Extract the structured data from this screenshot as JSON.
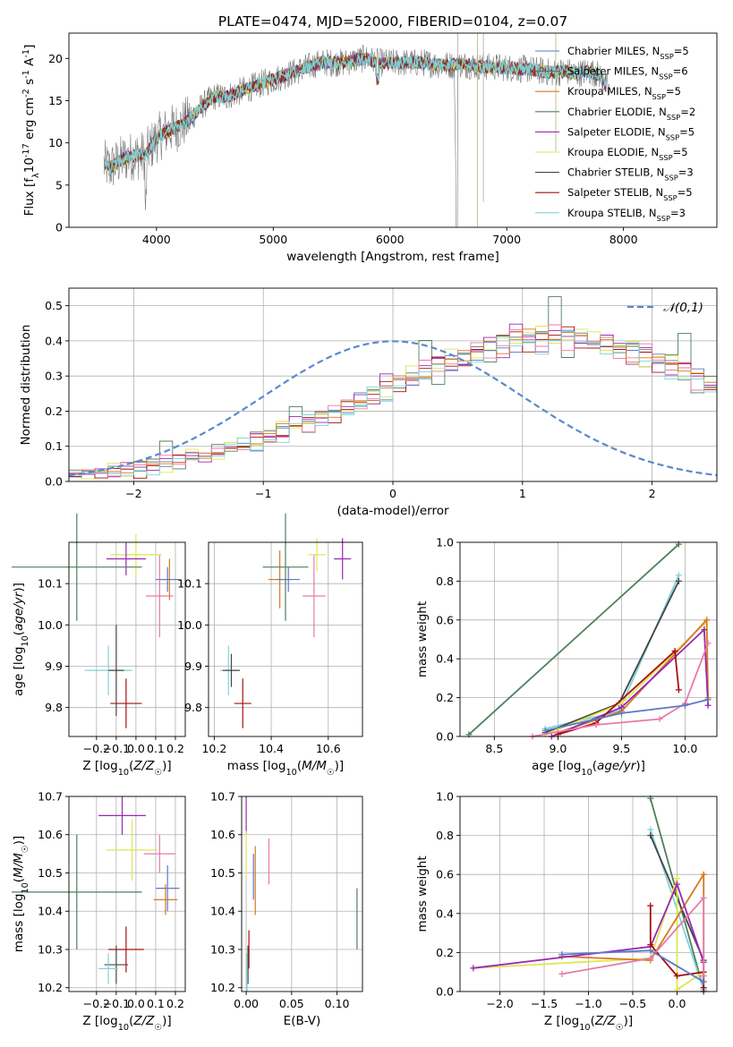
{
  "chart_data": [
    {
      "id": "spectrum",
      "type": "line",
      "title": "PLATE=0474, MJD=52000, FIBERID=0104, z=0.07",
      "xlabel": "wavelength [Angstrom, rest frame]",
      "ylabel": "Flux [f$_\\lambda$10$^{-17}$ erg cm$^{-2}$ s$^{-1}$ A$^{-1}$]",
      "xlim": [
        3250,
        8800
      ],
      "ylim": [
        0,
        23
      ],
      "xticks": [
        4000,
        5000,
        6000,
        7000,
        8000
      ],
      "yticks": [
        0,
        5,
        10,
        15,
        20
      ],
      "grid": false,
      "legend_position": "top-right",
      "envelope": {
        "x": [
          3550,
          3600,
          3700,
          3800,
          3900,
          4000,
          4100,
          4200,
          4300,
          4400,
          4500,
          4600,
          4700,
          4800,
          4900,
          5000,
          5100,
          5200,
          5300,
          5400,
          5500,
          5600,
          5700,
          5800,
          5900,
          6000,
          6100,
          6200,
          6300,
          6400,
          6500,
          6600,
          6700,
          6800,
          6900,
          7000,
          7100,
          7200,
          7300,
          7400,
          7500,
          7600,
          7700,
          7800,
          7880
        ],
        "y": [
          7.5,
          7.0,
          8.0,
          8.5,
          8.5,
          10.5,
          11.5,
          12.0,
          13.0,
          14.5,
          15.5,
          15.5,
          16.0,
          16.5,
          17.0,
          17.5,
          18.0,
          18.5,
          19.0,
          19.5,
          19.5,
          19.5,
          19.8,
          20.0,
          19.5,
          19.5,
          19.5,
          19.5,
          19.5,
          19.3,
          19.2,
          19.3,
          19.2,
          19.0,
          19.0,
          18.9,
          18.8,
          18.7,
          18.5,
          18.3,
          18.5,
          18.2,
          18.5,
          18.0,
          16.0
        ]
      },
      "series": [
        {
          "name": "Chabrier MILES, N$_{SSP}$=5",
          "color": "#5a78c8"
        },
        {
          "name": "Salpeter MILES, N$_{SSP}$=6",
          "color": "#6a6a6a"
        },
        {
          "name": "Kroupa MILES, N$_{SSP}$=5",
          "color": "#d47a1f"
        },
        {
          "name": "Chabrier ELODIE, N$_{SSP}$=2",
          "color": "#4f7f5c"
        },
        {
          "name": "Salpeter ELODIE, N$_{SSP}$=5",
          "color": "#9b27b5"
        },
        {
          "name": "Kroupa ELODIE, N$_{SSP}$=5",
          "color": "#dfe650"
        },
        {
          "name": "Chabrier STELIB, N$_{SSP}$=3",
          "color": "#444444"
        },
        {
          "name": "Salpeter STELIB, N$_{SSP}$=5",
          "color": "#a80f0f"
        },
        {
          "name": "Kroupa STELIB, N$_{SSP}$=3",
          "color": "#7fd3d8"
        }
      ]
    },
    {
      "id": "residuals",
      "type": "histogram",
      "xlabel": "(data-model)/error",
      "ylabel": "Normed distribution",
      "xlim": [
        -2.5,
        2.5
      ],
      "ylim": [
        0,
        0.55
      ],
      "xticks": [
        -2,
        -1,
        0,
        1,
        2
      ],
      "yticks": [
        0.0,
        0.1,
        0.2,
        0.3,
        0.4,
        0.5
      ],
      "grid": true,
      "legend": "$\\mathcal{N}(0,1)$",
      "legend_position": "top-right",
      "bin_width": 0.1,
      "bin_start": -2.5,
      "base_density": [
        0.018,
        0.02,
        0.024,
        0.028,
        0.032,
        0.037,
        0.043,
        0.049,
        0.056,
        0.064,
        0.072,
        0.081,
        0.091,
        0.101,
        0.113,
        0.125,
        0.138,
        0.151,
        0.165,
        0.18,
        0.195,
        0.21,
        0.225,
        0.241,
        0.257,
        0.273,
        0.289,
        0.305,
        0.32,
        0.335,
        0.349,
        0.362,
        0.373,
        0.383,
        0.391,
        0.397,
        0.4,
        0.402,
        0.4,
        0.397,
        0.391,
        0.383,
        0.373,
        0.362,
        0.349,
        0.335,
        0.32,
        0.305,
        0.289,
        0.273,
        0.257
      ],
      "hist_series": [
        {
          "color": "#5a78c8",
          "offsets": [
            0.0,
            -0.01,
            0.02,
            0.01,
            -0.02,
            0.03,
            0.02,
            -0.01,
            0.03,
            0.01
          ]
        },
        {
          "color": "#4f7f5c",
          "offsets": [
            0.01,
            0.03,
            -0.02,
            0.02,
            0.03,
            -0.01,
            0.04,
            0.12,
            -0.06,
            0.02
          ]
        },
        {
          "color": "#9b27b5",
          "offsets": [
            -0.01,
            0.02,
            0.03,
            -0.02,
            0.05,
            0.01,
            -0.02,
            0.04,
            0.02,
            -0.01
          ]
        },
        {
          "color": "#dfe650",
          "offsets": [
            0.02,
            -0.02,
            0.01,
            0.03,
            -0.01,
            0.02,
            0.03,
            -0.02,
            0.01,
            0.03
          ]
        },
        {
          "color": "#a80f0f",
          "offsets": [
            -0.02,
            0.01,
            -0.01,
            0.02,
            0.02,
            -0.03,
            0.01,
            0.02,
            0.03,
            -0.02
          ]
        },
        {
          "color": "#e87aa8",
          "offsets": [
            0.01,
            0.02,
            -0.02,
            -0.01,
            0.03,
            0.02,
            -0.01,
            0.03,
            -0.02,
            0.01
          ]
        },
        {
          "color": "#d47a1f",
          "offsets": [
            0.0,
            0.01,
            0.02,
            -0.02,
            0.01,
            0.03,
            0.02,
            0.0,
            0.02,
            0.01
          ]
        },
        {
          "color": "#7fd3d8",
          "offsets": [
            -0.01,
            -0.02,
            0.01,
            0.02,
            -0.02,
            0.01,
            -0.03,
            0.01,
            0.02,
            -0.01
          ]
        }
      ]
    },
    {
      "id": "age_vs_Z",
      "type": "scatter",
      "xlabel": "Z [log$_{10}$($Z/Z_\\odot$)]",
      "ylabel": "age  [log$_{10}$($age/yr$)]",
      "xlim": [
        -0.34,
        0.25
      ],
      "ylim": [
        9.73,
        10.2
      ],
      "xticks": [
        -0.2,
        -0.1,
        0.0,
        0.1,
        0.2
      ],
      "yticks": [
        9.8,
        9.9,
        10.0,
        10.1
      ],
      "grid": true,
      "points": [
        {
          "x": 0.12,
          "y": 10.07,
          "xerr": 0.07,
          "yerr": 0.1,
          "color": "#e87aa8"
        },
        {
          "x": 0.17,
          "y": 10.11,
          "xerr": 0.05,
          "yerr": 0.05,
          "color": "#d47a1f"
        },
        {
          "x": 0.16,
          "y": 10.11,
          "xerr": 0.06,
          "yerr": 0.03,
          "color": "#5a78c8"
        },
        {
          "x": 0.0,
          "y": 10.17,
          "xerr": 0.13,
          "yerr": 0.05,
          "color": "#dfe650"
        },
        {
          "x": -0.05,
          "y": 10.16,
          "xerr": 0.1,
          "yerr": 0.04,
          "color": "#9b27b5"
        },
        {
          "x": -0.3,
          "y": 10.14,
          "xerr": 0.33,
          "yerr": 0.13,
          "color": "#4f7f5c"
        },
        {
          "x": -0.14,
          "y": 9.89,
          "xerr": 0.12,
          "yerr": 0.06,
          "color": "#7fd3d8"
        },
        {
          "x": -0.1,
          "y": 9.89,
          "xerr": 0.04,
          "yerr": 0.11,
          "color": "#444444"
        },
        {
          "x": -0.05,
          "y": 9.81,
          "xerr": 0.08,
          "yerr": 0.06,
          "color": "#a80f0f"
        }
      ]
    },
    {
      "id": "age_vs_mass",
      "type": "scatter",
      "xlabel": "mass [log$_{10}$($M/M_\\odot$)]",
      "ylabel": "",
      "xlim": [
        10.18,
        10.72
      ],
      "ylim": [
        9.73,
        10.2
      ],
      "xticks": [
        10.2,
        10.4,
        10.6
      ],
      "yticks": [
        9.8,
        9.9,
        10.0,
        10.1
      ],
      "grid": true,
      "points": [
        {
          "x": 10.55,
          "y": 10.07,
          "xerr": 0.04,
          "yerr": 0.1,
          "color": "#e87aa8"
        },
        {
          "x": 10.43,
          "y": 10.11,
          "xerr": 0.04,
          "yerr": 0.07,
          "color": "#d47a1f"
        },
        {
          "x": 10.46,
          "y": 10.11,
          "xerr": 0.04,
          "yerr": 0.03,
          "color": "#5a78c8"
        },
        {
          "x": 10.56,
          "y": 10.17,
          "xerr": 0.03,
          "yerr": 0.04,
          "color": "#dfe650"
        },
        {
          "x": 10.65,
          "y": 10.16,
          "xerr": 0.03,
          "yerr": 0.05,
          "color": "#9b27b5"
        },
        {
          "x": 10.45,
          "y": 10.14,
          "xerr": 0.08,
          "yerr": 0.13,
          "color": "#4f7f5c"
        },
        {
          "x": 10.25,
          "y": 9.89,
          "xerr": 0.03,
          "yerr": 0.06,
          "color": "#7fd3d8"
        },
        {
          "x": 10.26,
          "y": 9.89,
          "xerr": 0.03,
          "yerr": 0.04,
          "color": "#444444"
        },
        {
          "x": 10.3,
          "y": 9.81,
          "xerr": 0.03,
          "yerr": 0.06,
          "color": "#a80f0f"
        }
      ]
    },
    {
      "id": "weight_vs_age",
      "type": "line",
      "xlabel": "age  [log$_{10}$($age/yr$)]",
      "ylabel": "mass weight",
      "xlim": [
        8.23,
        10.25
      ],
      "ylim": [
        0,
        1.0
      ],
      "xticks": [
        8.5,
        9.0,
        9.5,
        10.0
      ],
      "yticks": [
        0.0,
        0.2,
        0.4,
        0.6,
        0.8,
        1.0
      ],
      "grid": true,
      "series": [
        {
          "color": "#4f7f5c",
          "x": [
            8.3,
            9.95
          ],
          "y": [
            0.01,
            0.99
          ]
        },
        {
          "color": "#7fd3d8",
          "x": [
            8.9,
            9.48,
            9.95
          ],
          "y": [
            0.04,
            0.13,
            0.83
          ]
        },
        {
          "color": "#444444",
          "x": [
            8.9,
            9.48,
            9.95
          ],
          "y": [
            0.02,
            0.17,
            0.8
          ]
        },
        {
          "color": "#dfe650",
          "x": [
            8.9,
            9.5,
            10.15,
            10.18
          ],
          "y": [
            0.01,
            0.17,
            0.58,
            0.2
          ]
        },
        {
          "color": "#d47a1f",
          "x": [
            9.0,
            9.5,
            10.17,
            10.18
          ],
          "y": [
            0.02,
            0.13,
            0.6,
            0.2
          ]
        },
        {
          "color": "#9b27b5",
          "x": [
            8.95,
            9.5,
            10.15,
            10.18
          ],
          "y": [
            0.0,
            0.15,
            0.55,
            0.16
          ]
        },
        {
          "color": "#a80f0f",
          "x": [
            9.0,
            9.3,
            9.92,
            9.95
          ],
          "y": [
            0.01,
            0.07,
            0.44,
            0.24
          ]
        },
        {
          "color": "#e87aa8",
          "x": [
            8.8,
            9.3,
            9.8,
            10.0,
            10.18
          ],
          "y": [
            0.0,
            0.06,
            0.09,
            0.17,
            0.48
          ]
        },
        {
          "color": "#5a78c8",
          "x": [
            8.9,
            9.5,
            10.0,
            10.18
          ],
          "y": [
            0.03,
            0.12,
            0.16,
            0.19
          ]
        }
      ]
    },
    {
      "id": "mass_vs_Z",
      "type": "scatter",
      "xlabel": "Z [log$_{10}$($Z/Z_\\odot$)]",
      "ylabel": "mass [log$_{10}$($M/M_\\odot$)]",
      "xlim": [
        -0.34,
        0.25
      ],
      "ylim": [
        10.19,
        10.7
      ],
      "xticks": [
        -0.2,
        -0.1,
        0.0,
        0.1,
        0.2
      ],
      "yticks": [
        10.2,
        10.3,
        10.4,
        10.5,
        10.6,
        10.7
      ],
      "grid": true,
      "points": [
        {
          "x": -0.07,
          "y": 10.65,
          "xerr": 0.12,
          "yerr": 0.05,
          "color": "#9b27b5"
        },
        {
          "x": -0.02,
          "y": 10.56,
          "xerr": 0.13,
          "yerr": 0.08,
          "color": "#dfe650"
        },
        {
          "x": 0.12,
          "y": 10.55,
          "xerr": 0.08,
          "yerr": 0.05,
          "color": "#e87aa8"
        },
        {
          "x": 0.16,
          "y": 10.46,
          "xerr": 0.06,
          "yerr": 0.06,
          "color": "#5a78c8"
        },
        {
          "x": 0.15,
          "y": 10.43,
          "xerr": 0.06,
          "yerr": 0.04,
          "color": "#d47a1f"
        },
        {
          "x": -0.3,
          "y": 10.45,
          "xerr": 0.33,
          "yerr": 0.15,
          "color": "#4f7f5c"
        },
        {
          "x": -0.05,
          "y": 10.3,
          "xerr": 0.09,
          "yerr": 0.06,
          "color": "#a80f0f"
        },
        {
          "x": -0.1,
          "y": 10.26,
          "xerr": 0.06,
          "yerr": 0.05,
          "color": "#444444"
        },
        {
          "x": -0.14,
          "y": 10.25,
          "xerr": 0.05,
          "yerr": 0.04,
          "color": "#7fd3d8"
        }
      ]
    },
    {
      "id": "mass_vs_ebv",
      "type": "scatter",
      "xlabel": "E(B-V)",
      "ylabel": "",
      "xlim": [
        -0.005,
        0.128
      ],
      "ylim": [
        10.19,
        10.7
      ],
      "xticks": [
        0.0,
        0.05,
        0.1
      ],
      "yticks": [
        10.2,
        10.3,
        10.4,
        10.5,
        10.6,
        10.7
      ],
      "grid": true,
      "points": [
        {
          "x": 0.0,
          "y": 10.65,
          "xerr": 0.0,
          "yerr": 0.05,
          "color": "#9b27b5"
        },
        {
          "x": 0.0,
          "y": 10.55,
          "xerr": 0.0,
          "yerr": 0.06,
          "color": "#dfe650"
        },
        {
          "x": 0.025,
          "y": 10.53,
          "xerr": 0.0,
          "yerr": 0.06,
          "color": "#e87aa8"
        },
        {
          "x": 0.01,
          "y": 10.48,
          "xerr": 0.0,
          "yerr": 0.09,
          "color": "#d47a1f"
        },
        {
          "x": 0.008,
          "y": 10.49,
          "xerr": 0.0,
          "yerr": 0.06,
          "color": "#5a78c8"
        },
        {
          "x": 0.122,
          "y": 10.38,
          "xerr": 0.0,
          "yerr": 0.08,
          "color": "#4f7f5c"
        },
        {
          "x": 0.003,
          "y": 10.3,
          "xerr": 0.0,
          "yerr": 0.05,
          "color": "#a80f0f"
        },
        {
          "x": 0.002,
          "y": 10.26,
          "xerr": 0.0,
          "yerr": 0.05,
          "color": "#444444"
        },
        {
          "x": 0.001,
          "y": 10.24,
          "xerr": 0.0,
          "yerr": 0.05,
          "color": "#7fd3d8"
        }
      ]
    },
    {
      "id": "weight_vs_Z",
      "type": "line",
      "xlabel": "Z [log$_{10}$($Z/Z_\\odot$)]",
      "ylabel": "mass weight",
      "xlim": [
        -2.45,
        0.45
      ],
      "ylim": [
        0,
        1.0
      ],
      "xticks": [
        -2.0,
        -1.5,
        -1.0,
        -0.5,
        0.0
      ],
      "yticks": [
        0.0,
        0.2,
        0.4,
        0.6,
        0.8,
        1.0
      ],
      "grid": true,
      "series": [
        {
          "color": "#4f7f5c",
          "x": [
            -0.3,
            0.3
          ],
          "y": [
            0.99,
            0.01
          ]
        },
        {
          "color": "#7fd3d8",
          "x": [
            -0.3,
            0.3
          ],
          "y": [
            0.83,
            0.01
          ]
        },
        {
          "color": "#444444",
          "x": [
            -0.3,
            0.3,
            0.3
          ],
          "y": [
            0.8,
            0.16,
            0.0
          ]
        },
        {
          "color": "#dfe650",
          "x": [
            -2.3,
            -0.3,
            0.0,
            0.0,
            0.3
          ],
          "y": [
            0.12,
            0.17,
            0.58,
            0.01,
            0.1
          ]
        },
        {
          "color": "#d47a1f",
          "x": [
            -1.3,
            -0.3,
            0.3,
            0.3
          ],
          "y": [
            0.18,
            0.16,
            0.6,
            0.05
          ]
        },
        {
          "color": "#9b27b5",
          "x": [
            -2.3,
            -0.3,
            0.0,
            0.3
          ],
          "y": [
            0.12,
            0.23,
            0.55,
            0.15
          ]
        },
        {
          "color": "#a80f0f",
          "x": [
            -0.3,
            -0.3,
            0.0,
            0.3,
            0.3
          ],
          "y": [
            0.44,
            0.24,
            0.08,
            0.1,
            0.02
          ]
        },
        {
          "color": "#e87aa8",
          "x": [
            -1.3,
            -0.3,
            0.3,
            0.3
          ],
          "y": [
            0.09,
            0.17,
            0.48,
            0.08
          ]
        },
        {
          "color": "#5a78c8",
          "x": [
            -1.3,
            -0.3,
            0.3
          ],
          "y": [
            0.19,
            0.21,
            0.05
          ]
        }
      ]
    }
  ]
}
